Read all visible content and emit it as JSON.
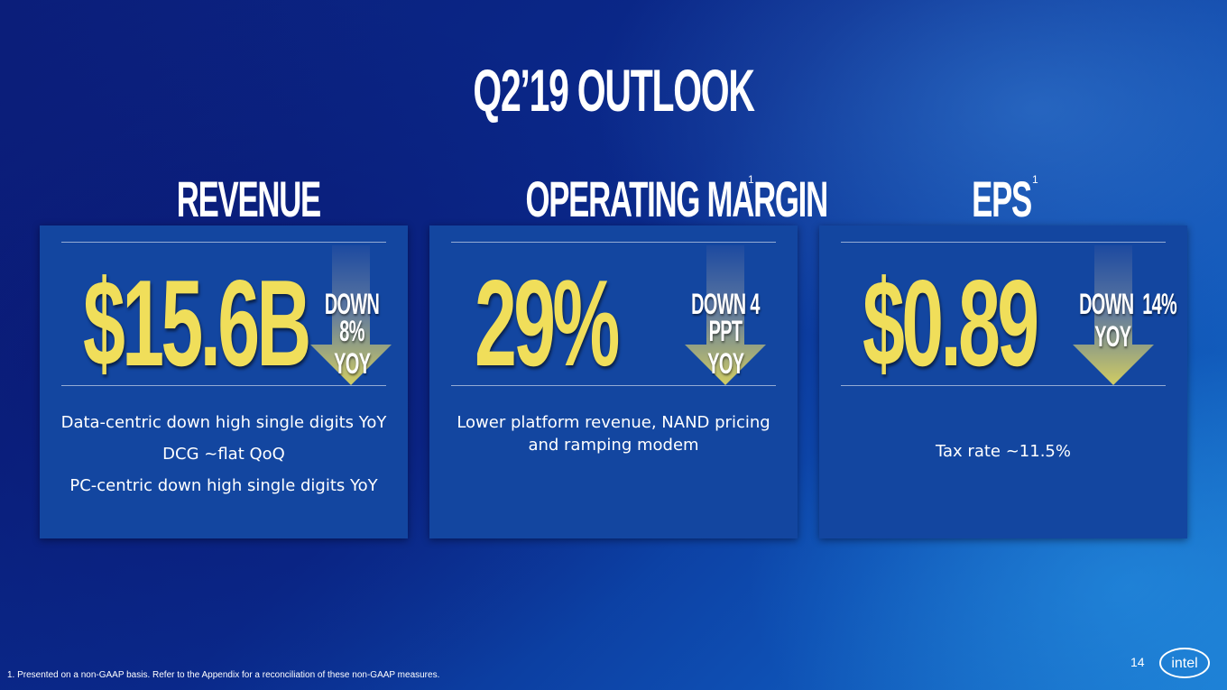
{
  "title": "Q2’19 OUTLOOK",
  "columns": [
    {
      "heading": "REVENUE",
      "superscript": "",
      "value": "$15.6B",
      "change_line1": "DOWN 8%",
      "change_line2": "YOY",
      "notes": [
        "Data-centric down high single digits YoY",
        "DCG ~flat QoQ",
        "PC-centric down high single digits YoY"
      ]
    },
    {
      "heading": "OPERATING MARGIN",
      "superscript": "1",
      "value": "29%",
      "change_line1": "DOWN 4 PPT",
      "change_line2": "YOY",
      "notes": [
        "Lower platform revenue, NAND pricing",
        "and ramping modem"
      ]
    },
    {
      "heading": "EPS",
      "superscript": "1",
      "value": "$0.89",
      "change_line1": "DOWN  14%",
      "change_line2": "YOY",
      "notes": [
        "Tax rate ~11.5%"
      ]
    }
  ],
  "footnote": "1. Presented on a non-GAAP basis. Refer to the Appendix for a reconciliation of these non-GAAP measures.",
  "page_number": "14",
  "logo_text": "intel",
  "colors": {
    "value_yellow": "#f0de5a",
    "card_blue": "#1346a0",
    "arrow_top": "#274fa0",
    "arrow_bottom": "#c9c562"
  }
}
